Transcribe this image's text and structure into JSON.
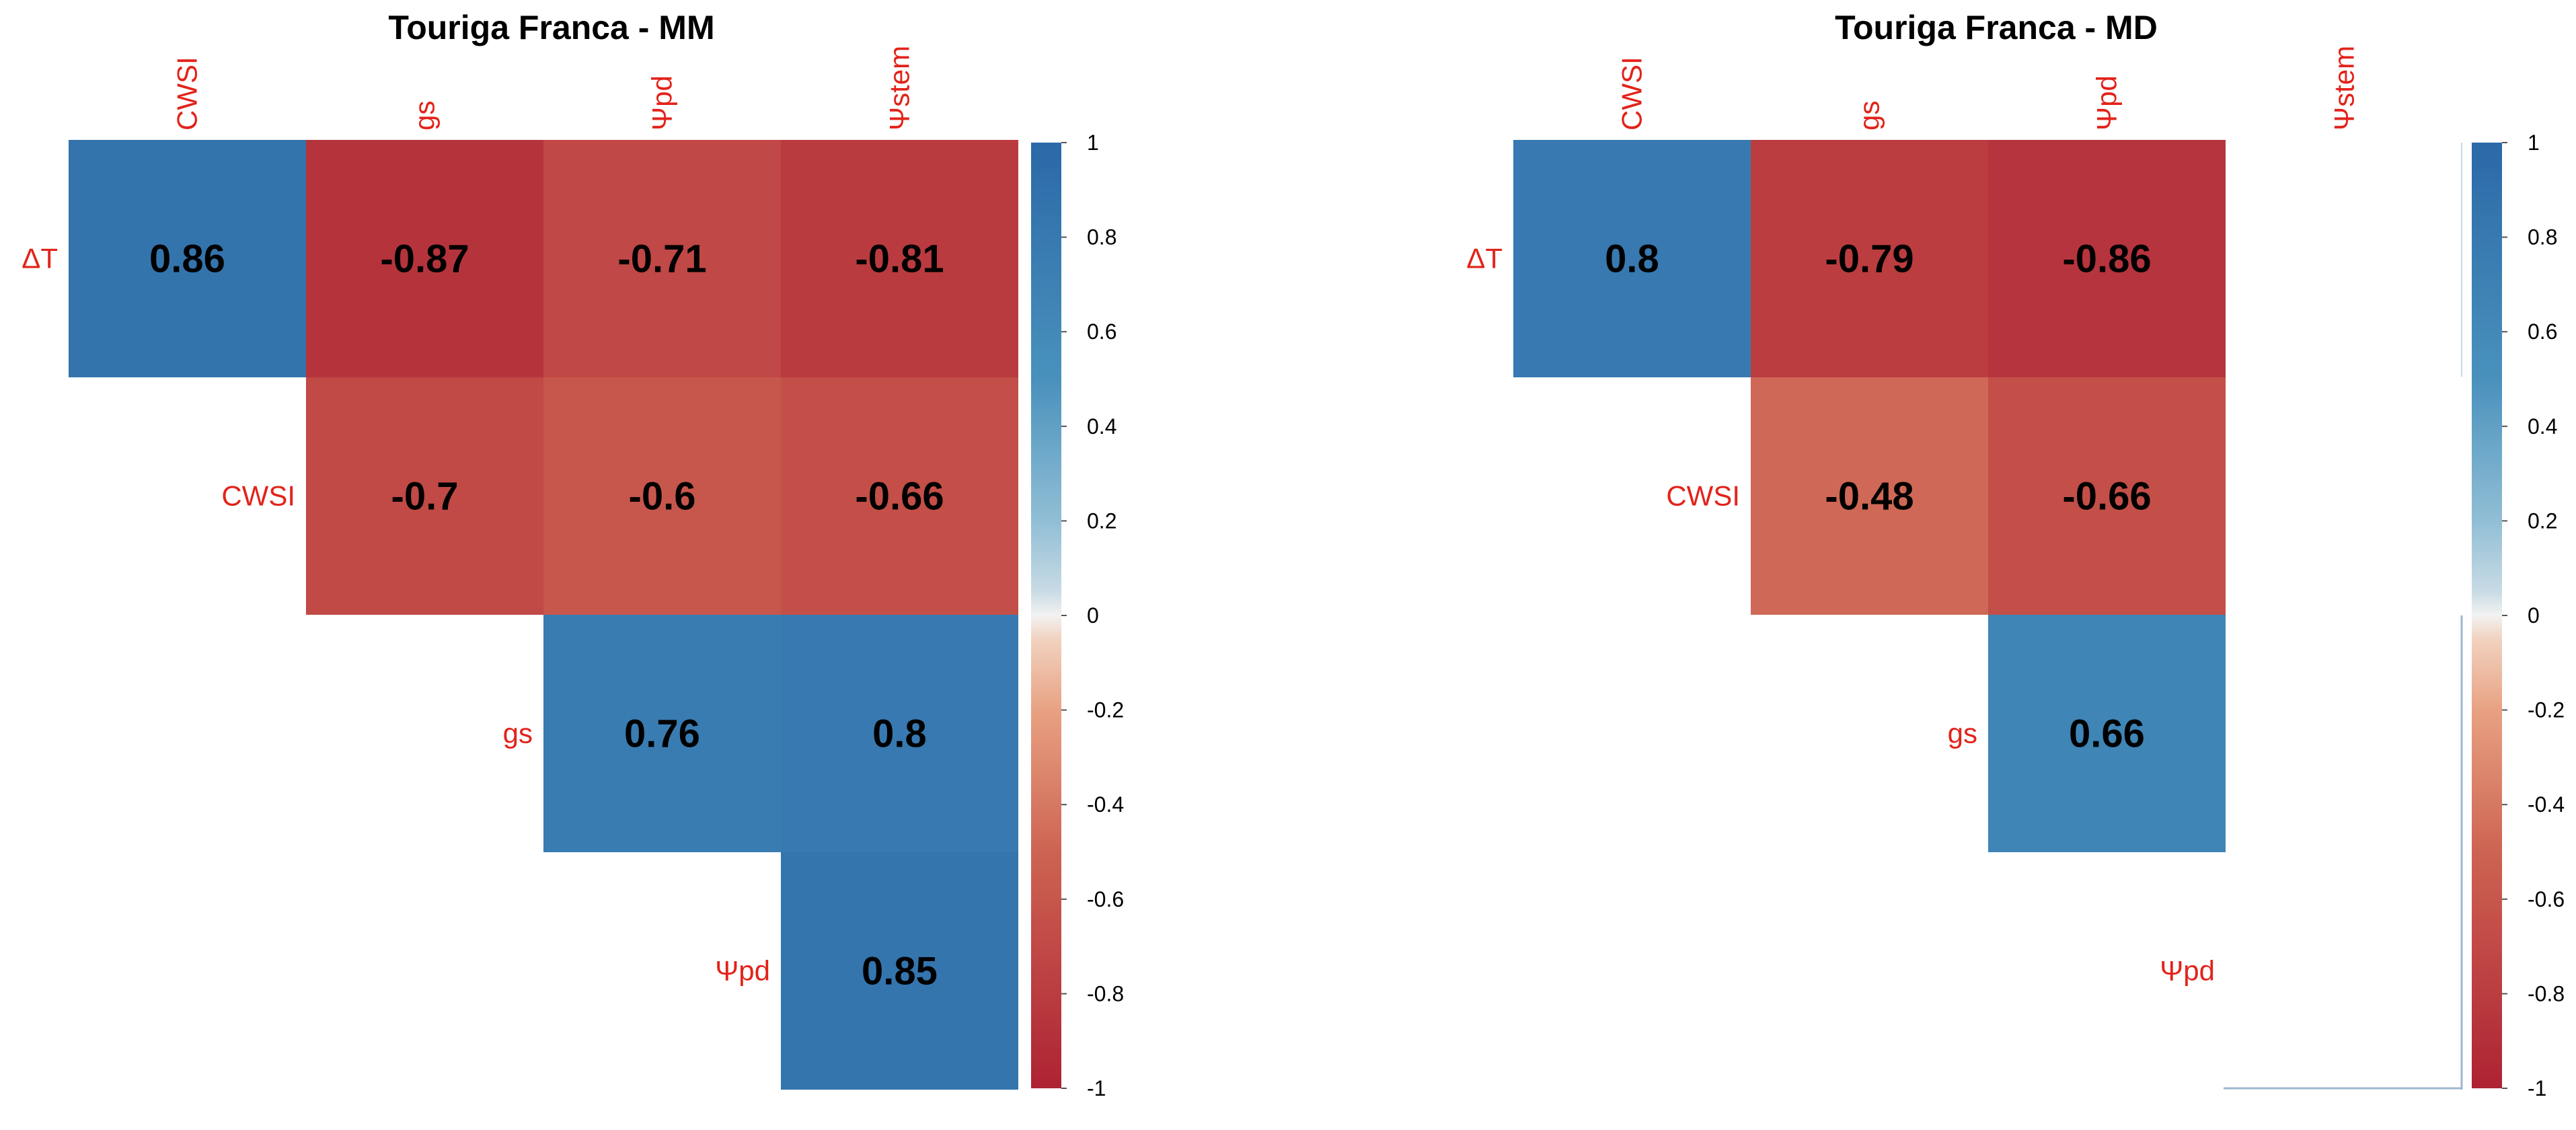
{
  "chart_data": [
    {
      "type": "heatmap",
      "subtype": "correlation-upper-triangle",
      "title": "Touriga Franca - MM",
      "col_labels": [
        "CWSI",
        "gs",
        "Ψpd",
        "Ψstem"
      ],
      "row_labels": [
        "ΔT",
        "CWSI",
        "gs",
        "Ψpd"
      ],
      "matrix": [
        [
          0.86,
          -0.87,
          -0.71,
          -0.81
        ],
        [
          null,
          -0.7,
          -0.6,
          -0.66
        ],
        [
          null,
          null,
          0.76,
          0.8
        ],
        [
          null,
          null,
          null,
          0.85
        ]
      ],
      "value_labels": [
        [
          "0.86",
          "-0.87",
          "-0.71",
          "-0.81"
        ],
        [
          null,
          "-0.7",
          "-0.6",
          "-0.66"
        ],
        [
          null,
          null,
          "0.76",
          "0.8"
        ],
        [
          null,
          null,
          null,
          "0.85"
        ]
      ],
      "colorbar": {
        "range": [
          -1,
          1
        ],
        "ticks": [
          "1",
          "0.8",
          "0.6",
          "0.4",
          "0.2",
          "0",
          "-0.2",
          "-0.4",
          "-0.6",
          "-0.8",
          "-1"
        ]
      }
    },
    {
      "type": "heatmap",
      "subtype": "correlation-upper-triangle",
      "title": "Touriga Franca - MD",
      "col_labels": [
        "CWSI",
        "gs",
        "Ψpd",
        "Ψstem"
      ],
      "row_labels": [
        "ΔT",
        "CWSI",
        "gs",
        "Ψpd"
      ],
      "matrix": [
        [
          0.8,
          -0.79,
          -0.86,
          null
        ],
        [
          null,
          -0.48,
          -0.66,
          null
        ],
        [
          null,
          null,
          0.66,
          null
        ],
        [
          null,
          null,
          null,
          null
        ]
      ],
      "value_labels": [
        [
          "0.8",
          "-0.79",
          "-0.86",
          null
        ],
        [
          null,
          "-0.48",
          "-0.66",
          null
        ],
        [
          null,
          null,
          "0.66",
          null
        ],
        [
          null,
          null,
          null,
          null
        ]
      ],
      "colorbar": {
        "range": [
          -1,
          1
        ],
        "ticks": [
          "1",
          "0.8",
          "0.6",
          "0.4",
          "0.2",
          "0",
          "-0.2",
          "-0.4",
          "-0.6",
          "-0.8",
          "-1"
        ]
      }
    }
  ],
  "colors": {
    "negative": "#b2182b",
    "neutral": "#ffffff",
    "positive": "#2166ac",
    "label": "#e2231a",
    "value_text": "#000000"
  }
}
